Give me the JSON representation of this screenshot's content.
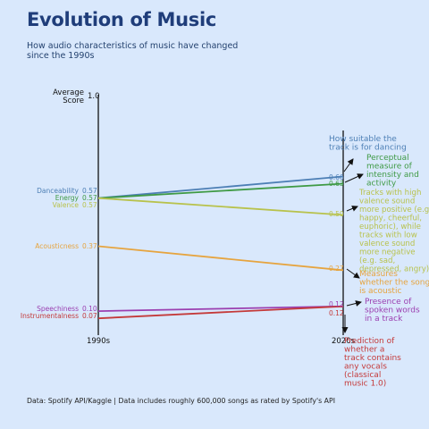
{
  "title": "Evolution of Music",
  "subtitle": "How audio characteristics of music have changed since the 1990s",
  "source": "Data: Spotify API/Kaggle | Data includes roughly 600,000 songs as rated by Spotify's API",
  "chart_data": {
    "type": "slope",
    "ylabel": "Average Score",
    "ymax_label": "1.0",
    "ylim": [
      0,
      1
    ],
    "categories": [
      "1990s",
      "2020s"
    ],
    "series": [
      {
        "name": "Danceability",
        "values": [
          0.57,
          0.66
        ],
        "labels": [
          "0.57",
          "0.66"
        ],
        "color": "#4d7fb5",
        "annotation": [
          "How suitable the",
          "track is for dancing"
        ]
      },
      {
        "name": "Energy",
        "values": [
          0.57,
          0.63
        ],
        "labels": [
          "0.57",
          "0.63"
        ],
        "color": "#3f9a45",
        "annotation": [
          "Perceptual",
          "measure of",
          "intensity and",
          "activity"
        ]
      },
      {
        "name": "Valence",
        "values": [
          0.57,
          0.5
        ],
        "labels": [
          "0.57",
          "0.50"
        ],
        "color": "#b8c24c",
        "annotation": [
          "Tracks with high",
          "valence sound",
          "more positive (e.g.",
          "happy, cheerful,",
          "euphoric), while",
          "tracks with low",
          "valence sound",
          "more negative",
          "(e.g. sad,",
          "depressed, angry)"
        ]
      },
      {
        "name": "Acousticness",
        "values": [
          0.37,
          0.27
        ],
        "labels": [
          "0.37",
          "0.27"
        ],
        "color": "#e6a43f",
        "annotation": [
          "Measures",
          "whether the song",
          "is acoustic"
        ]
      },
      {
        "name": "Speechiness",
        "values": [
          0.1,
          0.12
        ],
        "labels": [
          "0.10",
          "0.12"
        ],
        "color": "#9b3fb0",
        "annotation": [
          "Presence of",
          "spoken words",
          "in a track"
        ]
      },
      {
        "name": "Instrumentalness",
        "values": [
          0.07,
          0.12
        ],
        "labels": [
          "0.07",
          "0.12"
        ],
        "color": "#c43a3a",
        "annotation": [
          "Prediction of",
          "whether a",
          "track contains",
          "any vocals",
          "(classical",
          "music 1.0)"
        ]
      }
    ]
  }
}
